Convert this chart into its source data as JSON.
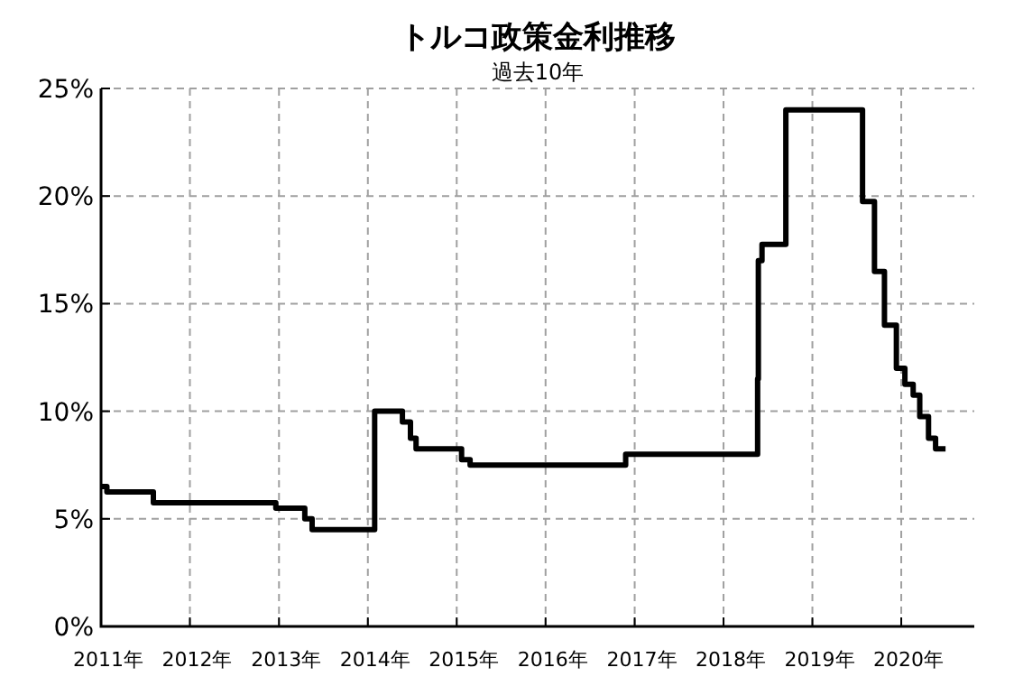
{
  "chart_data": {
    "type": "step",
    "title": "トルコ政策金利推移",
    "subtitle": "過去10年",
    "x": [
      "2011-01-01",
      "2011-01-25",
      "2011-08-04",
      "2012-12-19",
      "2013-04-17",
      "2013-05-17",
      "2014-01-29",
      "2014-05-23",
      "2014-06-25",
      "2014-07-18",
      "2015-01-21",
      "2015-02-25",
      "2016-11-25",
      "2018-05-21",
      "2018-05-24",
      "2018-06-08",
      "2018-09-14",
      "2019-07-26",
      "2019-09-13",
      "2019-10-24",
      "2019-12-12",
      "2020-01-16",
      "2020-02-19",
      "2020-03-17",
      "2020-04-22",
      "2020-05-21",
      "2020-07-01"
    ],
    "values": [
      6.5,
      6.25,
      5.75,
      5.5,
      5,
      4.5,
      10,
      9.5,
      8.75,
      8.25,
      7.75,
      7.5,
      8,
      11.5,
      17,
      17.75,
      24,
      19.75,
      16.5,
      14,
      12,
      11.25,
      10.75,
      9.75,
      8.75,
      8.25,
      8.25
    ],
    "color": "#000000",
    "xlim": [
      "2011-01-01",
      "2020-10-27"
    ],
    "ylim": [
      0,
      25
    ],
    "xticks": [
      {
        "value": "2011-01-01",
        "label": "2011年"
      },
      {
        "value": "2012-01-01",
        "label": "2012年"
      },
      {
        "value": "2013-01-01",
        "label": "2013年"
      },
      {
        "value": "2014-01-01",
        "label": "2014年"
      },
      {
        "value": "2015-01-01",
        "label": "2015年"
      },
      {
        "value": "2016-01-01",
        "label": "2016年"
      },
      {
        "value": "2017-01-01",
        "label": "2017年"
      },
      {
        "value": "2018-01-01",
        "label": "2018年"
      },
      {
        "value": "2019-01-01",
        "label": "2019年"
      },
      {
        "value": "2020-01-01",
        "label": "2020年"
      }
    ],
    "yticks": [
      {
        "value": 0,
        "label": "0%"
      },
      {
        "value": 5,
        "label": "5%"
      },
      {
        "value": 10,
        "label": "10%"
      },
      {
        "value": 15,
        "label": "15%"
      },
      {
        "value": 20,
        "label": "20%"
      },
      {
        "value": 25,
        "label": "25%"
      }
    ],
    "grid": true
  }
}
